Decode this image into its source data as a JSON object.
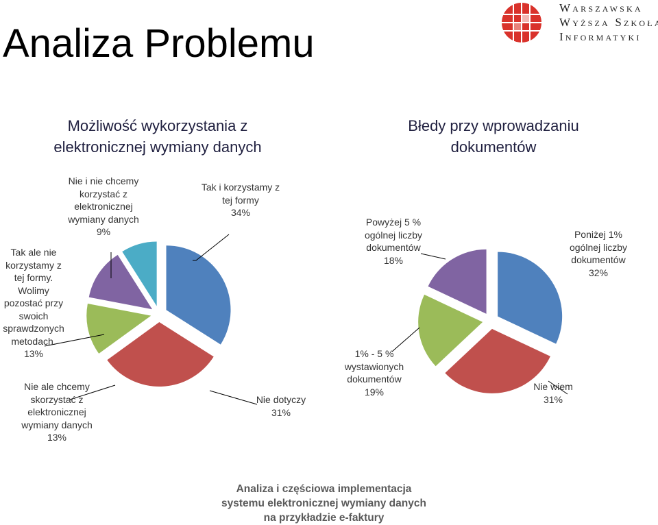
{
  "slide": {
    "title": "Analiza Problemu",
    "footer": [
      "Analiza i częściowa implementacja",
      "systemu elektronicznej wymiany danych",
      "na przykładzie e-faktury"
    ]
  },
  "logo": {
    "lines": [
      "Warszawska",
      "Wyższa Szkoła",
      "Informatyki"
    ],
    "colors": {
      "red": "#d9322b",
      "grid": "#ffffff"
    }
  },
  "chart_data": [
    {
      "type": "pie",
      "title": "Możliwość wykorzystania z elektronicznej wymiany danych",
      "slices": [
        {
          "label": "Tak i korzystamy z tej formy",
          "value": 34,
          "value_label": "34%",
          "color": "#4f81bd"
        },
        {
          "label": "Nie dotyczy",
          "value": 31,
          "value_label": "31%",
          "color": "#c0504d"
        },
        {
          "label": "Nie ale chcemy skorzystać z elektronicznej wymiany danych",
          "value": 13,
          "value_label": "13%",
          "color": "#9bbb59"
        },
        {
          "label": "Tak ale nie korzystamy z tej formy. Wolimy pozostać przy swoich sprawdzonych metodach.",
          "value": 13,
          "value_label": "13%",
          "color": "#8064a2"
        },
        {
          "label": "Nie i nie chcemy korzystać z elektronicznej wymiany danych",
          "value": 9,
          "value_label": "9%",
          "color": "#4bacc6"
        }
      ]
    },
    {
      "type": "pie",
      "title": "Błedy przy wprowadzaniu dokumentów",
      "slices": [
        {
          "label": "Poniżej 1% ogólnej liczby dokumentów",
          "value": 32,
          "value_label": "32%",
          "color": "#4f81bd"
        },
        {
          "label": "Nie wiem",
          "value": 31,
          "value_label": "31%",
          "color": "#c0504d"
        },
        {
          "label": "1% - 5 % wystawionych dokumentów",
          "value": 19,
          "value_label": "19%",
          "color": "#9bbb59"
        },
        {
          "label": "Powyżej 5 % ogólnej liczby dokumentów",
          "value": 18,
          "value_label": "18%",
          "color": "#8064a2"
        }
      ]
    }
  ]
}
